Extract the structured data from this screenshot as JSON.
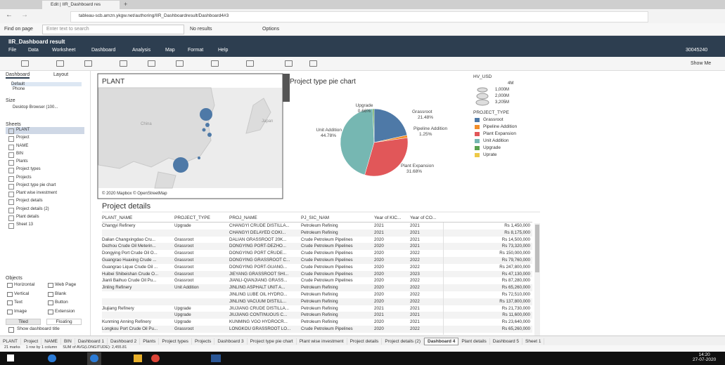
{
  "browser": {
    "tab_title": "Edit | IIR_Dashboard res",
    "url": "tableau-scb.amzn.ykgw.net/authoring/IIR_Dashboardresult/Dashboard4#3",
    "find_label": "Find on page",
    "find_placeholder": "Enter text to search",
    "find_status": "No results",
    "find_options": "Options"
  },
  "app": {
    "workbook_title": "IIR_Dashboard result",
    "menu": [
      "File",
      "Data",
      "Worksheet",
      "Dashboard",
      "Analysis",
      "Map",
      "Format",
      "Help"
    ],
    "user": "30045240",
    "show_me": "Show Me"
  },
  "left_panel": {
    "tabs": [
      "Dashboard",
      "Layout"
    ],
    "devices": [
      "Default",
      "Phone"
    ],
    "size_label": "Size",
    "size_value": "Desktop Browser (100...",
    "sheets_label": "Sheets",
    "sheets": [
      "PLANT",
      "Project",
      "NAME",
      "BIN",
      "Plants",
      "Project types",
      "Projects",
      "Project type pie chart",
      "Plant wise investment",
      "Project details",
      "Project details (2)",
      "Plant details",
      "Sheet 13"
    ],
    "objects_label": "Objects",
    "objects": [
      "Horizontal",
      "Web Page",
      "Vertical",
      "Blank",
      "Text",
      "Button",
      "Image",
      "Extension"
    ],
    "tiled": "Tiled",
    "floating": "Floating",
    "show_title": "Show dashboard title"
  },
  "map": {
    "title": "PLANT",
    "credits": "© 2020 Mapbox © OpenStreetMap",
    "places": [
      "China",
      "Japan"
    ]
  },
  "pie_chart": {
    "type": "pie",
    "title": "Project type pie chart",
    "categories": [
      "Grassroot",
      "Pipeline Addition",
      "Plant Expansion",
      "Unit Addition",
      "Upgrade"
    ],
    "values": [
      21.48,
      1.25,
      31.68,
      44.78,
      0.66
    ],
    "value_labels": [
      "21.48%",
      "1.25%",
      "31.68%",
      "44.78%",
      "0.66%"
    ],
    "colors": [
      "#4e79a7",
      "#f28e2b",
      "#e15759",
      "#76b7b2",
      "#59a14f"
    ]
  },
  "size_legend": {
    "title": "HV_USD",
    "labels": [
      "4M",
      "1,000M",
      "2,000M",
      "3,205M"
    ]
  },
  "color_legend": {
    "title": "PROJECT_TYPE",
    "items": [
      {
        "name": "Grassroot",
        "color": "#4e79a7"
      },
      {
        "name": "Pipeline Addition",
        "color": "#f28e2b"
      },
      {
        "name": "Plant Expansion",
        "color": "#e15759"
      },
      {
        "name": "Unit Addition",
        "color": "#76b7b2"
      },
      {
        "name": "Upgrade",
        "color": "#59a14f"
      },
      {
        "name": "Uprate",
        "color": "#edc948"
      }
    ]
  },
  "table": {
    "title": "Project details",
    "columns": [
      "PLANT_NAME",
      "PROJECT_TYPE",
      "PROJ_NAME",
      "PJ_SIC_NAM",
      "Year of KIC...",
      "Year of CO..."
    ],
    "rows": [
      [
        "Changyi Refinery",
        "Upgrade",
        "CHANGYI CRUDE DISTILLA...",
        "Petroleum Refining",
        "2021",
        "2021",
        "Rs 1,450,000"
      ],
      [
        null,
        null,
        "CHANGYI DELAYED COKI...",
        "Petroleum Refining",
        "2021",
        "2021",
        "Rs 8,175,000"
      ],
      [
        "Dalian Changxingdao Cru...",
        "Grassroot",
        "DALIAN GRASSROOT 20K...",
        "Crude Petroleum Pipelines",
        "2020",
        "2021",
        "Rs 14,500,000"
      ],
      [
        "Dezhou Crude Oil Meterin...",
        "Grassroot",
        "DONGYING PORT-DEZHO...",
        "Crude Petroleum Pipelines",
        "2020",
        "2021",
        "Rs 73,320,000"
      ],
      [
        "Dongying Port Crude Oil O...",
        "Grassroot",
        "DONGYING PORT CRUDE...",
        "Crude Petroleum Pipelines",
        "2020",
        "2022",
        "Rs 150,000,000"
      ],
      [
        "Guangrao Huaxing Crude ...",
        "Grassroot",
        "DONGYING GRASSROOT C...",
        "Crude Petroleum Pipelines",
        "2020",
        "2022",
        "Rs 79,760,000"
      ],
      [
        "Guangrao Lique Crude Oil ...",
        "Grassroot",
        "DONGYING PORT-GUANG...",
        "Crude Petroleum Pipelines",
        "2020",
        "2022",
        "Rs 247,800,000"
      ],
      [
        "Huibei Shibeishan Crude O...",
        "Grassroot",
        "JIEYANG GRASSROOT SHI...",
        "Crude Petroleum Pipelines",
        "2020",
        "2023",
        "Rs 47,130,000"
      ],
      [
        "Jianli Baihuo Crude Oil Pu...",
        "Grassroot",
        "JIANLI-QIANJIANG GRASS...",
        "Crude Petroleum Pipelines",
        "2020",
        "2022",
        "Rs 87,280,000"
      ],
      [
        "Jinling Refinery",
        "Unit Addition",
        "JINLING ASPHALT UNIT A...",
        "Petroleum Refining",
        "2020",
        "2022",
        "Rs 65,260,000"
      ],
      [
        null,
        null,
        "JINLING LUBE OIL HYDRO...",
        "Petroleum Refining",
        "2020",
        "2022",
        "Rs 72,510,000"
      ],
      [
        null,
        null,
        "JINLING VACUUM DISTILL...",
        "Petroleum Refining",
        "2020",
        "2022",
        "Rs 137,800,000"
      ],
      [
        "Jiujiang Refinery",
        "Upgrade",
        "JIUJIANG CRUDE DISTILLA...",
        "Petroleum Refining",
        "2021",
        "2021",
        "Rs 21,730,000"
      ],
      [
        null,
        "Upgrade",
        "JIUJIANG CONTINUOUS C...",
        "Petroleum Refining",
        "2021",
        "2021",
        "Rs 11,600,000"
      ],
      [
        "Kunming Anning Refinery",
        "Upgrade",
        "KUNMING VGO HYDROCR...",
        "Petroleum Refining",
        "2020",
        "2021",
        "Rs 23,640,000"
      ],
      [
        "Longkou Port Crude Oil Pu...",
        "Grassroot",
        "LONGKOU GRASSROOT LO...",
        "Crude Petroleum Pipelines",
        "2020",
        "2022",
        "Rs 65,260,000"
      ]
    ]
  },
  "sheet_tabs": [
    "PLANT",
    "Project",
    "NAME",
    "BIN",
    "Dashboard 1",
    "Dashboard 2",
    "Plants",
    "Project types",
    "Projects",
    "Dashboard 3",
    "Project type pie chart",
    "Plant wise investment",
    "Project details",
    "Project details (2)",
    "Dashboard 4",
    "Plant details",
    "Dashboard 5",
    "Sheet 1"
  ],
  "status_bar": [
    "21 marks",
    "1 row by 1 column",
    "SUM of AVG(LONGITUDE): 2,455.81"
  ],
  "taskbar": {
    "time": "14:20",
    "date": "27-07-2020"
  }
}
